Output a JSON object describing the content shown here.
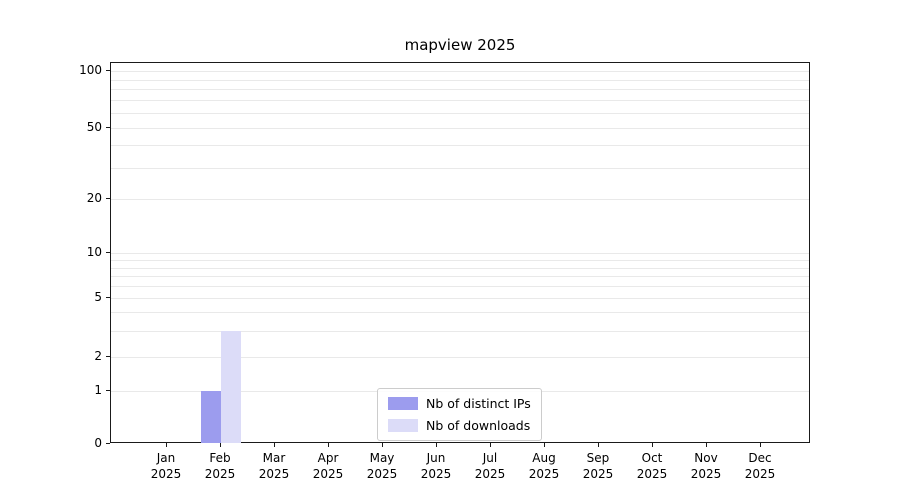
{
  "chart_data": {
    "type": "bar",
    "title": "mapview 2025",
    "categories": [
      "Jan",
      "Feb",
      "Mar",
      "Apr",
      "May",
      "Jun",
      "Jul",
      "Aug",
      "Sep",
      "Oct",
      "Nov",
      "Dec"
    ],
    "year_label": "2025",
    "series": [
      {
        "name": "Nb of distinct IPs",
        "color": "#9c9cee",
        "values": [
          0,
          1,
          0,
          0,
          0,
          0,
          0,
          0,
          0,
          0,
          0,
          0
        ]
      },
      {
        "name": "Nb of downloads",
        "color": "#dcdcf8",
        "values": [
          0,
          3,
          0,
          0,
          0,
          0,
          0,
          0,
          0,
          0,
          0,
          0
        ]
      }
    ],
    "yticks": [
      0,
      1,
      2,
      5,
      10,
      20,
      50,
      100
    ],
    "ylim": [
      0,
      100
    ],
    "yscale": "log-like",
    "grid": "horizontal-minor",
    "legend_position": "bottom-center"
  }
}
